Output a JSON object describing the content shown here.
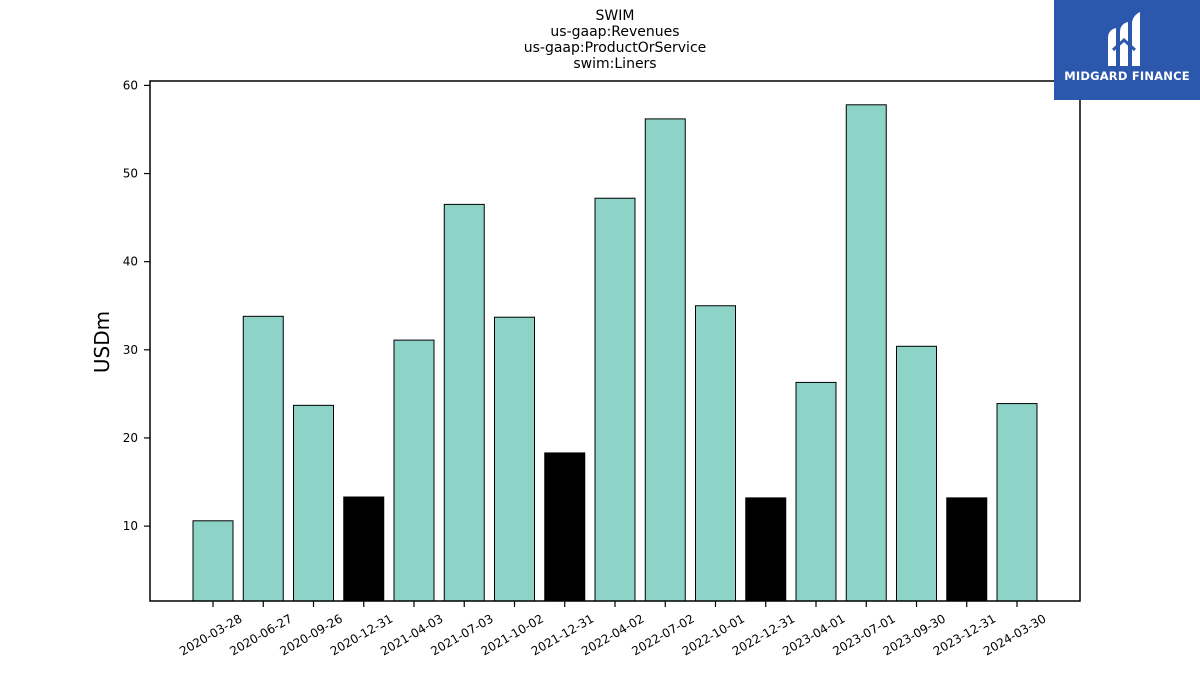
{
  "colors": {
    "normal_bar": "#8dd3c7",
    "q4_bar": "#000000",
    "bar_edge": "#000000",
    "logo_bg": "#2b57ad",
    "logo_fg": "#ffffff"
  },
  "logo": {
    "text": "MIDGARD FINANCE",
    "icon": "midgard-logo-icon"
  },
  "chart_data": {
    "type": "bar",
    "title_lines": [
      "SWIM",
      "us-gaap:Revenues",
      "us-gaap:ProductOrService",
      "swim:Liners"
    ],
    "xlabel": "",
    "ylabel": "USDm",
    "ylim": [
      1.5,
      60.5
    ],
    "yticks": [
      10,
      20,
      30,
      40,
      50,
      60
    ],
    "grid": false,
    "categories": [
      "2020-03-28",
      "2020-06-27",
      "2020-09-26",
      "2020-12-31",
      "2021-04-03",
      "2021-07-03",
      "2021-10-02",
      "2021-12-31",
      "2022-04-02",
      "2022-07-02",
      "2022-10-01",
      "2022-12-31",
      "2023-04-01",
      "2023-07-01",
      "2023-09-30",
      "2023-12-31",
      "2024-03-30"
    ],
    "values": [
      10.6,
      33.8,
      23.7,
      13.3,
      31.1,
      46.5,
      33.7,
      18.3,
      47.2,
      56.2,
      35.0,
      13.2,
      26.3,
      57.8,
      30.4,
      13.2,
      23.9
    ],
    "highlight_categories": [
      "2020-12-31",
      "2021-12-31",
      "2022-12-31",
      "2023-12-31"
    ]
  }
}
